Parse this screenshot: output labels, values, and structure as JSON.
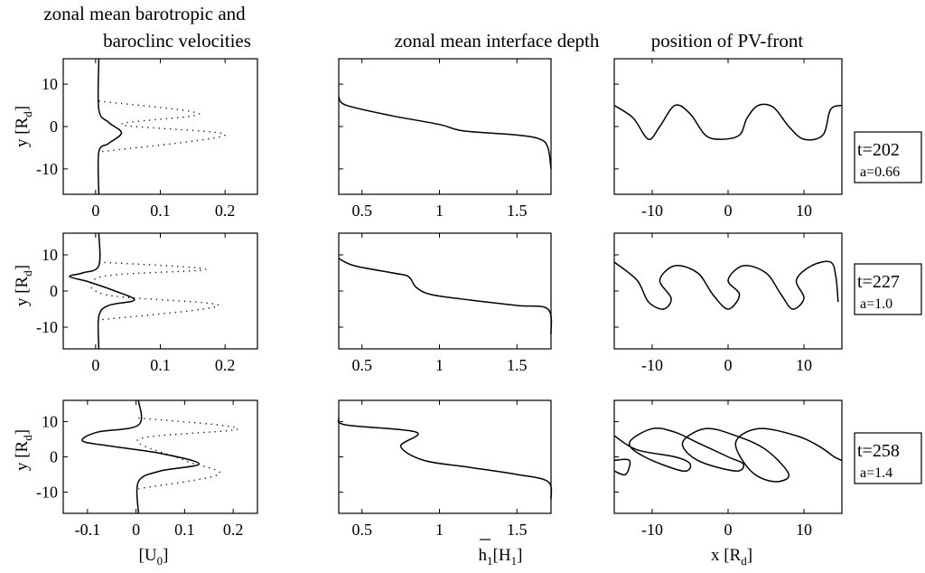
{
  "titles": {
    "col1_line1": "zonal mean barotropic and",
    "col1_line2": "baroclinc velocities",
    "col2": "zonal mean interface depth",
    "col3": "position of PV-front"
  },
  "labels": {
    "y_main": "y [R",
    "y_sub": "d",
    "x1_main": "[U",
    "x1_sub": "0",
    "x2_main": "h",
    "x2_sub": "1",
    "x2_rest": "[H",
    "x2_sub2": "1",
    "x3_main": "x [R",
    "x3_sub": "d"
  },
  "snapshots": [
    {
      "t": "t=202",
      "a": "a=0.66"
    },
    {
      "t": "t=227",
      "a": "a=1.0"
    },
    {
      "t": "t=258",
      "a": "a=1.4"
    }
  ],
  "chart_data": [
    {
      "type": "line",
      "panel": "velocities t=202",
      "xlim": [
        -0.05,
        0.25
      ],
      "ylim": [
        -16,
        16
      ],
      "xticks": [
        "0",
        "0.1",
        "0.2"
      ],
      "yticks": [
        "10",
        "0",
        "-10"
      ],
      "series": [
        {
          "style": "solid",
          "points": [
            [
              0.005,
              16
            ],
            [
              0.005,
              4
            ],
            [
              0.02,
              1
            ],
            [
              0.04,
              -1.5
            ],
            [
              0.02,
              -4
            ],
            [
              0.005,
              -6
            ],
            [
              0.005,
              -16
            ]
          ]
        },
        {
          "style": "dotted",
          "points": [
            [
              0.005,
              6
            ],
            [
              0.16,
              3
            ],
            [
              0.04,
              0.5
            ],
            [
              0.2,
              -2
            ],
            [
              0.005,
              -6
            ]
          ]
        }
      ]
    },
    {
      "type": "line",
      "panel": "interface depth t=202",
      "xlim": [
        0.35,
        1.72
      ],
      "ylim": [
        -16,
        16
      ],
      "xticks": [
        "0.5",
        "1",
        "1.5"
      ],
      "series": [
        {
          "style": "solid",
          "points": [
            [
              0.35,
              7
            ],
            [
              0.4,
              5
            ],
            [
              0.7,
              2.5
            ],
            [
              1.0,
              0.5
            ],
            [
              1.15,
              -1
            ],
            [
              1.5,
              -2
            ],
            [
              1.65,
              -3
            ],
            [
              1.7,
              -5
            ],
            [
              1.72,
              -10
            ]
          ]
        }
      ]
    },
    {
      "type": "line",
      "panel": "PV-front t=202",
      "xlim": [
        -15,
        15
      ],
      "ylim": [
        -16,
        16
      ],
      "xticks": [
        "-10",
        "0",
        "10"
      ],
      "series": [
        {
          "style": "solid",
          "points": [
            [
              -15,
              5
            ],
            [
              -12.5,
              2
            ],
            [
              -10.5,
              -3
            ],
            [
              -9,
              0
            ],
            [
              -7,
              5
            ],
            [
              -5,
              3
            ],
            [
              -3,
              -2
            ],
            [
              -1,
              -3
            ],
            [
              1.5,
              -2
            ],
            [
              2.5,
              2
            ],
            [
              4,
              5
            ],
            [
              6,
              4.5
            ],
            [
              8,
              0
            ],
            [
              10,
              -3
            ],
            [
              12.5,
              -2
            ],
            [
              13.5,
              4
            ],
            [
              15,
              5
            ]
          ]
        }
      ]
    },
    {
      "type": "line",
      "panel": "velocities t=227",
      "xlim": [
        -0.05,
        0.25
      ],
      "ylim": [
        -16,
        16
      ],
      "xticks": [
        "0",
        "0.1",
        "0.2"
      ],
      "yticks": [
        "10",
        "0",
        "-10"
      ],
      "series": [
        {
          "style": "solid",
          "points": [
            [
              0.005,
              16
            ],
            [
              0.005,
              7
            ],
            [
              -0.02,
              5
            ],
            [
              -0.04,
              4
            ],
            [
              -0.01,
              2.5
            ],
            [
              0.03,
              0
            ],
            [
              0.06,
              -2.5
            ],
            [
              0.02,
              -4
            ],
            [
              0.005,
              -7
            ],
            [
              0.005,
              -16
            ]
          ]
        },
        {
          "style": "dotted",
          "points": [
            [
              0.005,
              8
            ],
            [
              0.17,
              6
            ],
            [
              0.01,
              4
            ],
            [
              0.015,
              -1
            ],
            [
              0.19,
              -4
            ],
            [
              0.005,
              -8
            ]
          ]
        }
      ]
    },
    {
      "type": "line",
      "panel": "interface depth t=227",
      "xlim": [
        0.35,
        1.72
      ],
      "ylim": [
        -16,
        16
      ],
      "xticks": [
        "0.5",
        "1",
        "1.5"
      ],
      "series": [
        {
          "style": "solid",
          "points": [
            [
              0.35,
              9
            ],
            [
              0.45,
              7
            ],
            [
              0.7,
              5
            ],
            [
              0.8,
              4
            ],
            [
              0.85,
              1
            ],
            [
              0.95,
              -1
            ],
            [
              1.2,
              -2.5
            ],
            [
              1.5,
              -4
            ],
            [
              1.7,
              -5
            ],
            [
              1.72,
              -12
            ]
          ]
        }
      ]
    },
    {
      "type": "line",
      "panel": "PV-front t=227",
      "xlim": [
        -15,
        15
      ],
      "ylim": [
        -16,
        16
      ],
      "xticks": [
        "-10",
        "0",
        "10"
      ],
      "series": [
        {
          "style": "solid",
          "points": [
            [
              -15,
              8
            ],
            [
              -12,
              3
            ],
            [
              -10.5,
              -3
            ],
            [
              -8.5,
              -5
            ],
            [
              -7.5,
              -2
            ],
            [
              -9,
              3
            ],
            [
              -7,
              7
            ],
            [
              -4,
              5
            ],
            [
              -2,
              -1
            ],
            [
              0,
              -5
            ],
            [
              1.5,
              -1
            ],
            [
              0,
              3
            ],
            [
              2,
              7
            ],
            [
              5,
              5
            ],
            [
              7,
              -1
            ],
            [
              8.5,
              -5
            ],
            [
              10,
              -2
            ],
            [
              9,
              3
            ],
            [
              11,
              7
            ],
            [
              13.5,
              8
            ],
            [
              14.2,
              4
            ],
            [
              14.5,
              -3
            ]
          ]
        }
      ]
    },
    {
      "type": "line",
      "panel": "velocities t=258",
      "xlim": [
        -0.15,
        0.25
      ],
      "ylim": [
        -16,
        16
      ],
      "xticks": [
        "-0.1",
        "0",
        "0.1",
        "0.2"
      ],
      "yticks": [
        "10",
        "0",
        "-10"
      ],
      "series": [
        {
          "style": "solid",
          "points": [
            [
              0.005,
              16
            ],
            [
              0.005,
              9
            ],
            [
              -0.08,
              7
            ],
            [
              -0.11,
              4.5
            ],
            [
              -0.05,
              3
            ],
            [
              0.05,
              1
            ],
            [
              0.13,
              -2
            ],
            [
              0.05,
              -4
            ],
            [
              0.005,
              -7
            ],
            [
              0.005,
              -16
            ]
          ]
        },
        {
          "style": "dotted",
          "points": [
            [
              0.005,
              11
            ],
            [
              0.21,
              8
            ],
            [
              0.005,
              5
            ],
            [
              0.1,
              -1
            ],
            [
              0.17,
              -5
            ],
            [
              0.005,
              -9
            ]
          ]
        }
      ]
    },
    {
      "type": "line",
      "panel": "interface depth t=258",
      "xlim": [
        0.35,
        1.72
      ],
      "ylim": [
        -16,
        16
      ],
      "xticks": [
        "0.5",
        "1",
        "1.5"
      ],
      "series": [
        {
          "style": "solid",
          "points": [
            [
              0.35,
              11
            ],
            [
              0.4,
              9
            ],
            [
              0.85,
              7
            ],
            [
              0.75,
              3
            ],
            [
              0.9,
              -1
            ],
            [
              1.2,
              -3
            ],
            [
              1.5,
              -5
            ],
            [
              1.7,
              -7
            ],
            [
              1.72,
              -12
            ]
          ]
        }
      ]
    },
    {
      "type": "line",
      "panel": "PV-front t=258",
      "xlim": [
        -15,
        15
      ],
      "ylim": [
        -16,
        16
      ],
      "xticks": [
        "-10",
        "0",
        "10"
      ],
      "series": [
        {
          "style": "solid",
          "points": [
            [
              -15,
              6
            ],
            [
              -12,
              2
            ],
            [
              -7,
              0
            ],
            [
              -5,
              -2
            ],
            [
              -6,
              -4
            ],
            [
              -11,
              0
            ],
            [
              -13,
              4
            ],
            [
              -10,
              8
            ],
            [
              -7,
              7
            ],
            [
              -4,
              4
            ],
            [
              0,
              0
            ],
            [
              2,
              -2
            ],
            [
              1,
              -4
            ],
            [
              -4,
              -1
            ],
            [
              -6,
              4
            ],
            [
              -3,
              8
            ],
            [
              1,
              6
            ],
            [
              5,
              2
            ],
            [
              8,
              -5
            ],
            [
              6,
              -7
            ],
            [
              3,
              -4
            ],
            [
              1,
              4
            ],
            [
              4,
              8
            ],
            [
              9,
              6
            ],
            [
              12,
              3
            ],
            [
              14,
              0
            ],
            [
              15,
              -1
            ]
          ]
        },
        {
          "style": "solid",
          "points": [
            [
              -15,
              -4
            ],
            [
              -13.5,
              -5
            ],
            [
              -13,
              -1
            ],
            [
              -15,
              -1
            ]
          ]
        }
      ]
    }
  ]
}
